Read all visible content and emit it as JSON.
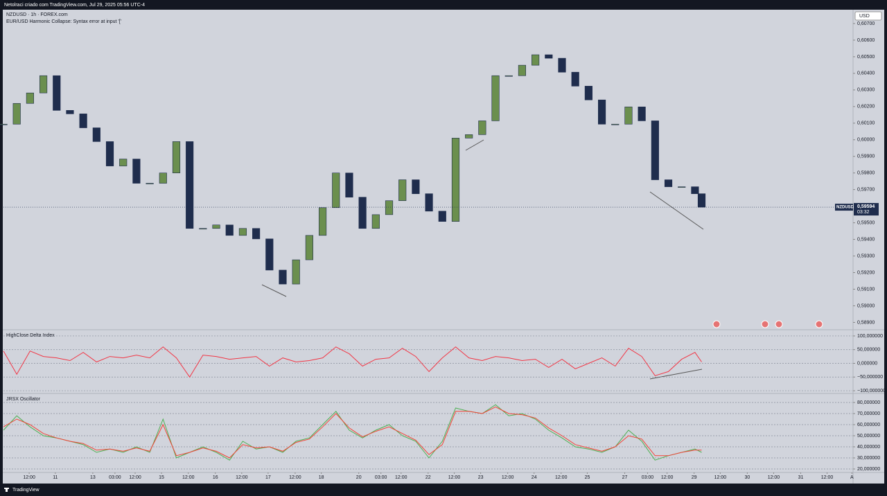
{
  "header": {
    "caption": "Netolraci criado com TradingView.com, Jul 29, 2025 05:56 UTC-4",
    "symbol_line": "NZDUSD · 1h · FOREX.com",
    "error_line": "EUR/USD Harmonic Collapse: Syntax error at input '['",
    "currency": "USD",
    "brand": "TradingView"
  },
  "chart_data": [
    {
      "type": "candlestick",
      "symbol": "NZDUSD",
      "countdown": "03:32",
      "last_price": {
        "value": 0.59594,
        "label": "0,59594"
      },
      "up_color": "#6b8f4e",
      "down_color": "#1f2d4d",
      "x": [
        0,
        6,
        12,
        18,
        24,
        30,
        36,
        42,
        48,
        54,
        60,
        66,
        72,
        78,
        84,
        90,
        96,
        102,
        108,
        114,
        120,
        126,
        132,
        138,
        144,
        150,
        156,
        162,
        168,
        174,
        180,
        186,
        192,
        198,
        204,
        210,
        216,
        222,
        228,
        234,
        240,
        246,
        252,
        258,
        264,
        270,
        276,
        282,
        288,
        294,
        300,
        306,
        312,
        315
      ],
      "values": [
        0.60094,
        0.60219,
        0.60282,
        0.60386,
        0.60177,
        0.60156,
        0.60072,
        0.59989,
        0.59842,
        0.59884,
        0.59738,
        0.59738,
        0.598,
        0.59989,
        0.59466,
        0.59466,
        0.59487,
        0.59424,
        0.59466,
        0.59403,
        0.59215,
        0.59131,
        0.59277,
        0.59424,
        0.59591,
        0.598,
        0.59654,
        0.59466,
        0.59549,
        0.59633,
        0.59759,
        0.59675,
        0.5957,
        0.59508,
        0.6001,
        0.60031,
        0.60114,
        0.60386,
        0.60386,
        0.60449,
        0.60512,
        0.60491,
        0.60407,
        0.60323,
        0.6024,
        0.60094,
        0.60094,
        0.60198,
        0.60114,
        0.59759,
        0.59717,
        0.59717,
        0.59675,
        0.59594
      ],
      "xlim": [
        0,
        383
      ],
      "ylim": [
        0.5886,
        0.608
      ],
      "yticks": [
        {
          "value": 0.607,
          "label": "0,60700"
        },
        {
          "value": 0.606,
          "label": "0,60600"
        },
        {
          "value": 0.605,
          "label": "0,60500"
        },
        {
          "value": 0.604,
          "label": "0,60400"
        },
        {
          "value": 0.603,
          "label": "0,60300"
        },
        {
          "value": 0.602,
          "label": "0,60200"
        },
        {
          "value": 0.601,
          "label": "0,60100"
        },
        {
          "value": 0.6,
          "label": "0,60000"
        },
        {
          "value": 0.599,
          "label": "0,59900"
        },
        {
          "value": 0.598,
          "label": "0,59800"
        },
        {
          "value": 0.597,
          "label": "0,59700"
        },
        {
          "value": 0.596,
          "label": "0,59600"
        },
        {
          "value": 0.595,
          "label": "0,59500"
        },
        {
          "value": 0.594,
          "label": "0,59400"
        },
        {
          "value": 0.593,
          "label": "0,59300"
        },
        {
          "value": 0.592,
          "label": "0,59200"
        },
        {
          "value": 0.591,
          "label": "0,59100"
        },
        {
          "value": 0.59,
          "label": "0,59000"
        },
        {
          "value": 0.589,
          "label": "0,58900"
        }
      ],
      "xticks": [
        {
          "value": 11.6,
          "label": "12:00"
        },
        {
          "value": 23.4,
          "label": "11"
        },
        {
          "value": 40.3,
          "label": "13"
        },
        {
          "value": 50.3,
          "label": "03:00"
        },
        {
          "value": 59.4,
          "label": "12:00"
        },
        {
          "value": 71.3,
          "label": "15"
        },
        {
          "value": 83.4,
          "label": "12:00"
        },
        {
          "value": 95.6,
          "label": "16"
        },
        {
          "value": 107.5,
          "label": "12:00"
        },
        {
          "value": 119.4,
          "label": "17"
        },
        {
          "value": 131.6,
          "label": "12:00"
        },
        {
          "value": 143.4,
          "label": "18"
        },
        {
          "value": 160.3,
          "label": "20"
        },
        {
          "value": 170.3,
          "label": "03:00"
        },
        {
          "value": 179.4,
          "label": "12:00"
        },
        {
          "value": 191.6,
          "label": "22"
        },
        {
          "value": 203.4,
          "label": "12:00"
        },
        {
          "value": 215.3,
          "label": "23"
        },
        {
          "value": 227.5,
          "label": "12:00"
        },
        {
          "value": 239.4,
          "label": "24"
        },
        {
          "value": 251.6,
          "label": "12:00"
        },
        {
          "value": 263.4,
          "label": "25"
        },
        {
          "value": 280.3,
          "label": "27"
        },
        {
          "value": 290.6,
          "label": "03:00"
        },
        {
          "value": 299.4,
          "label": "12:00"
        },
        {
          "value": 311.6,
          "label": "29"
        },
        {
          "value": 323.4,
          "label": "12:00"
        },
        {
          "value": 335.6,
          "label": "30"
        },
        {
          "value": 347.5,
          "label": "12:00"
        },
        {
          "value": 359.7,
          "label": "31"
        },
        {
          "value": 371.6,
          "label": "12:00"
        },
        {
          "value": 382.8,
          "label": "A"
        }
      ]
    },
    {
      "type": "line",
      "title": "HighClose Delta Index",
      "grid": true,
      "x": [
        0,
        6,
        12,
        18,
        24,
        30,
        36,
        42,
        48,
        54,
        60,
        66,
        72,
        78,
        84,
        90,
        96,
        102,
        108,
        114,
        120,
        126,
        132,
        138,
        144,
        150,
        156,
        162,
        168,
        174,
        180,
        186,
        192,
        198,
        204,
        210,
        216,
        222,
        228,
        234,
        240,
        246,
        252,
        258,
        264,
        270,
        276,
        282,
        288,
        294,
        300,
        306,
        312,
        315
      ],
      "series": [
        {
          "color": "#f23645",
          "values": [
            45,
            -40,
            45,
            25,
            20,
            10,
            40,
            5,
            25,
            20,
            30,
            20,
            60,
            20,
            -50,
            30,
            25,
            15,
            20,
            25,
            -10,
            20,
            5,
            10,
            20,
            60,
            35,
            -10,
            15,
            20,
            55,
            25,
            -30,
            20,
            60,
            20,
            10,
            25,
            20,
            10,
            15,
            -15,
            15,
            -20,
            0,
            20,
            -10,
            55,
            25,
            -45,
            -30,
            15,
            40,
            5
          ]
        }
      ],
      "xlim": [
        0,
        383
      ],
      "ylim": [
        -115,
        115
      ],
      "yticks": [
        {
          "value": 100,
          "label": "100,000000"
        },
        {
          "value": 50,
          "label": "50,000000"
        },
        {
          "value": 0,
          "label": "0,000000"
        },
        {
          "value": -50,
          "label": "−50,000000"
        },
        {
          "value": -100,
          "label": "−100,000000"
        }
      ]
    },
    {
      "type": "line",
      "title": "JRSX Oscillator",
      "grid": true,
      "x": [
        0,
        6,
        12,
        18,
        24,
        30,
        36,
        42,
        48,
        54,
        60,
        66,
        72,
        78,
        84,
        90,
        96,
        102,
        108,
        114,
        120,
        126,
        132,
        138,
        144,
        150,
        156,
        162,
        168,
        174,
        180,
        186,
        192,
        198,
        204,
        210,
        216,
        222,
        228,
        234,
        240,
        246,
        252,
        258,
        264,
        270,
        276,
        282,
        288,
        294,
        300,
        306,
        312,
        315
      ],
      "series": [
        {
          "color": "#4caf50",
          "values": [
            55,
            68,
            58,
            50,
            48,
            45,
            42,
            35,
            38,
            35,
            40,
            35,
            65,
            30,
            35,
            40,
            35,
            28,
            45,
            38,
            40,
            35,
            45,
            48,
            60,
            72,
            55,
            48,
            55,
            60,
            50,
            45,
            30,
            45,
            75,
            72,
            70,
            78,
            68,
            70,
            65,
            55,
            48,
            40,
            38,
            35,
            40,
            55,
            45,
            28,
            32,
            35,
            38,
            35
          ]
        },
        {
          "color": "#f44336",
          "values": [
            58,
            65,
            60,
            52,
            48,
            45,
            43,
            37,
            38,
            36,
            39,
            36,
            60,
            32,
            35,
            39,
            36,
            30,
            42,
            39,
            40,
            36,
            44,
            47,
            58,
            70,
            57,
            49,
            54,
            58,
            52,
            46,
            33,
            42,
            72,
            72,
            70,
            76,
            70,
            69,
            66,
            57,
            50,
            42,
            39,
            36,
            40,
            50,
            47,
            32,
            32,
            35,
            37,
            37
          ]
        }
      ],
      "xlim": [
        0,
        383
      ],
      "ylim": [
        15,
        85
      ],
      "yticks": [
        {
          "value": 80,
          "label": "80,000000"
        },
        {
          "value": 70,
          "label": "70,000000"
        },
        {
          "value": 60,
          "label": "60,000000"
        },
        {
          "value": 50,
          "label": "50,000000"
        },
        {
          "value": 40,
          "label": "40,000000"
        },
        {
          "value": 30,
          "label": "30,000000"
        },
        {
          "value": 20,
          "label": "20,000000"
        }
      ]
    }
  ]
}
